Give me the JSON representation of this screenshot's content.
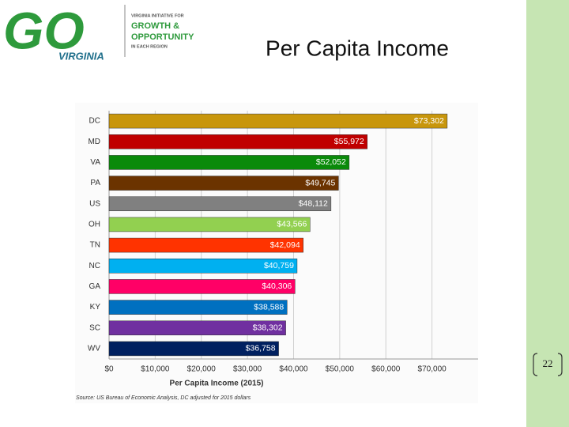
{
  "slide": {
    "title": "Per Capita Income",
    "page_number": "22"
  },
  "logo": {
    "mark": "GO",
    "state": "VIRGINIA",
    "line1": "VIRGINIA INITIATIVE FOR",
    "line2": "GROWTH &",
    "line3": "OPPORTUNITY",
    "line4": "IN EACH REGION"
  },
  "chart_data": {
    "type": "hbar",
    "categories": [
      "DC",
      "MD",
      "VA",
      "PA",
      "US",
      "OH",
      "TN",
      "NC",
      "GA",
      "KY",
      "SC",
      "WV"
    ],
    "values": [
      73302,
      55972,
      52052,
      49745,
      48112,
      43566,
      42094,
      40759,
      40306,
      38588,
      38302,
      36758
    ],
    "value_labels": [
      "$73,302",
      "$55,972",
      "$52,052",
      "$49,745",
      "$48,112",
      "$43,566",
      "$42,094",
      "$40,759",
      "$40,306",
      "$38,588",
      "$38,302",
      "$36,758"
    ],
    "colors": [
      "#c8960c",
      "#c00000",
      "#0a8a0a",
      "#6b3300",
      "#808080",
      "#92d050",
      "#ff3300",
      "#00b0f0",
      "#ff0066",
      "#0070c0",
      "#7030a0",
      "#002060"
    ],
    "xlim": [
      0,
      80000
    ],
    "xticks": [
      {
        "value": 0,
        "label": "$0"
      },
      {
        "value": 10000,
        "label": "$10,000"
      },
      {
        "value": 20000,
        "label": "$20,000"
      },
      {
        "value": 30000,
        "label": "$30,000"
      },
      {
        "value": 40000,
        "label": "$40,000"
      },
      {
        "value": 50000,
        "label": "$50,000"
      },
      {
        "value": 60000,
        "label": "$60,000"
      },
      {
        "value": 70000,
        "label": "$70,000"
      }
    ],
    "xlabel": "Per Capita Income (2015)",
    "source": "Source: US Bureau of Economic Analysis, DC adjusted for 2015 dollars",
    "grid": true
  }
}
